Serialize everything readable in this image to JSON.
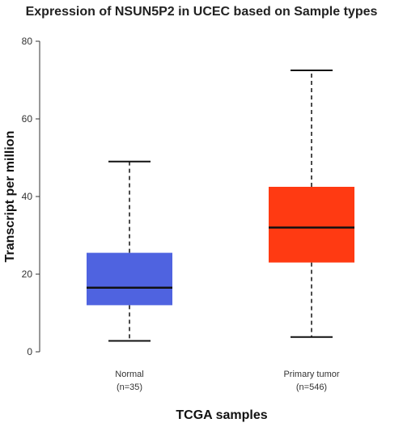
{
  "chart_data": {
    "type": "boxplot",
    "title": "Expression of NSUN5P2 in UCEC based on Sample types",
    "xlabel": "TCGA samples",
    "ylabel": "Transcript per million",
    "ylim": [
      0,
      80
    ],
    "yticks": [
      0,
      20,
      40,
      60,
      80
    ],
    "grid": false,
    "categories": [
      {
        "label": "Normal",
        "n_label": "(n=35)",
        "color": "#4F63E0",
        "min": 2.8,
        "q1": 12,
        "median": 16.5,
        "q3": 25.5,
        "max": 49
      },
      {
        "label": "Primary tumor",
        "n_label": "(n=546)",
        "color": "#FF3A12",
        "min": 3.8,
        "q1": 23,
        "median": 32,
        "q3": 42.5,
        "max": 72.5
      }
    ]
  }
}
